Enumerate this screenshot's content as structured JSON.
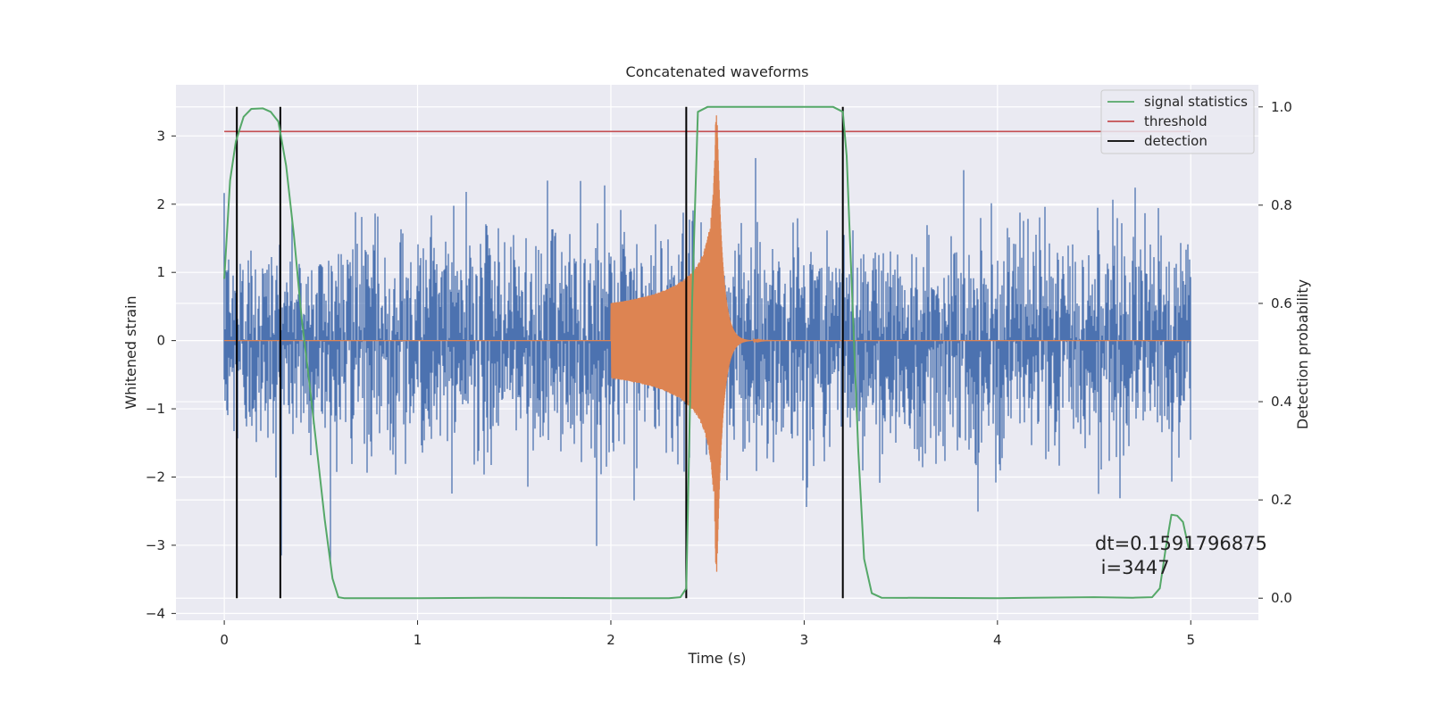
{
  "chart_data": {
    "type": "line",
    "title": "Concatenated waveforms",
    "xlabel": "Time (s)",
    "ylabel": "Whitened strain",
    "ylabel_right": "Detection probability",
    "xlim": [
      -0.25,
      5.35
    ],
    "ylim": [
      -4.1,
      3.75
    ],
    "ylim_right": [
      -0.045,
      1.045
    ],
    "x_ticks": [
      0,
      1,
      2,
      3,
      4,
      5
    ],
    "x_tick_labels": [
      "0",
      "1",
      "2",
      "3",
      "4",
      "5"
    ],
    "y_ticks": [
      -4,
      -3,
      -2,
      -1,
      0,
      1,
      2,
      3
    ],
    "y_tick_labels": [
      "−4",
      "−3",
      "−2",
      "−1",
      "0",
      "1",
      "2",
      "3"
    ],
    "y2_ticks": [
      0.0,
      0.2,
      0.4,
      0.6,
      0.8,
      1.0
    ],
    "y2_tick_labels": [
      "0.0",
      "0.2",
      "0.4",
      "0.6",
      "0.8",
      "1.0"
    ],
    "grid": true,
    "legend_position": "top-right",
    "legend": [
      {
        "label": "signal statistics",
        "color": "#55a868"
      },
      {
        "label": "threshold",
        "color": "#c44e52"
      },
      {
        "label": "detection",
        "color": "#000000"
      }
    ],
    "colors": {
      "noise": "#4c72b0",
      "template": "#dd8452",
      "statistic": "#55a868",
      "threshold": "#c44e52",
      "detection": "#000000",
      "plot_background": "#eaeaf2",
      "grid": "#ffffff"
    },
    "series": [
      {
        "axis": "left",
        "kind": "whitened strain noise",
        "color": "#4c72b0",
        "x_range": [
          0,
          5
        ],
        "typical_amplitude": 1.8,
        "peak_amplitude": 3.4
      },
      {
        "axis": "left",
        "kind": "injected chirp",
        "color": "#dd8452",
        "x_start": 2.0,
        "x_merger": 2.55,
        "x_end": 3.0,
        "peak_amplitude": 3.4
      },
      {
        "axis": "right",
        "name": "signal statistics",
        "color": "#55a868",
        "x": [
          0,
          0.03,
          0.06,
          0.1,
          0.14,
          0.2,
          0.24,
          0.28,
          0.32,
          0.36,
          0.4,
          0.44,
          0.48,
          0.52,
          0.56,
          0.59,
          0.62,
          1.0,
          1.4,
          2.0,
          2.3,
          2.36,
          2.39,
          2.42,
          2.45,
          2.5,
          3.0,
          3.15,
          3.2,
          3.22,
          3.25,
          3.28,
          3.31,
          3.35,
          3.4,
          4.0,
          4.5,
          4.7,
          4.8,
          4.84,
          4.87,
          4.9,
          4.93,
          4.96,
          4.99
        ],
        "y": [
          0.65,
          0.85,
          0.93,
          0.98,
          0.996,
          0.997,
          0.99,
          0.97,
          0.88,
          0.74,
          0.57,
          0.44,
          0.3,
          0.16,
          0.04,
          0.002,
          0.0,
          0.0,
          0.001,
          0.0,
          0.0,
          0.002,
          0.02,
          0.6,
          0.99,
          1.0,
          1.0,
          1.0,
          0.99,
          0.9,
          0.6,
          0.3,
          0.08,
          0.01,
          0.001,
          0.0,
          0.002,
          0.001,
          0.002,
          0.02,
          0.1,
          0.17,
          0.168,
          0.155,
          0.1
        ]
      },
      {
        "axis": "right",
        "name": "threshold",
        "color": "#c44e52",
        "x": [
          0,
          5
        ],
        "y": [
          0.95,
          0.95
        ]
      }
    ],
    "detections_x": [
      0.065,
      0.29,
      2.39,
      3.2
    ],
    "detection_span_right": [
      0.0,
      1.0
    ],
    "annotation": {
      "line1": "dt=0.1591796875",
      "line2": " i=3447",
      "x": 4.5,
      "y1": -3.0,
      "y2": -3.35
    }
  }
}
